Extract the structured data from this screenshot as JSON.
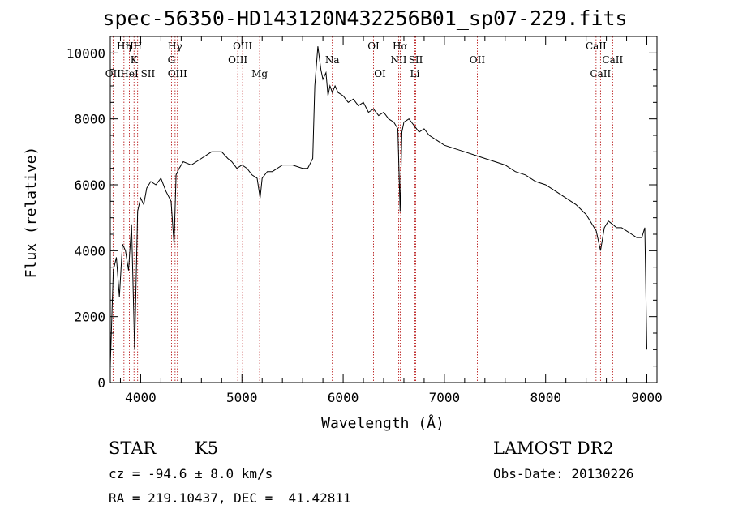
{
  "chart_data": {
    "type": "line",
    "title": "spec-56350-HD143120N432256B01_sp07-229.fits",
    "xlabel": "Wavelength (Å)",
    "ylabel": "Flux (relative)",
    "xlim": [
      3700,
      9100
    ],
    "ylim": [
      0,
      10500
    ],
    "x_ticks": [
      4000,
      5000,
      6000,
      7000,
      8000,
      9000
    ],
    "y_ticks": [
      0,
      2000,
      4000,
      6000,
      8000,
      10000
    ],
    "series": [
      {
        "x": [
          3700,
          3730,
          3760,
          3790,
          3820,
          3850,
          3880,
          3910,
          3940,
          3970,
          4000,
          4030,
          4060,
          4100,
          4150,
          4200,
          4250,
          4300,
          4330,
          4350,
          4380,
          4420,
          4500,
          4600,
          4700,
          4800,
          4860,
          4900,
          4950,
          5000,
          5050,
          5100,
          5150,
          5180,
          5200,
          5250,
          5300,
          5400,
          5500,
          5600,
          5650,
          5700,
          5720,
          5750,
          5780,
          5800,
          5830,
          5850,
          5870,
          5893,
          5920,
          5950,
          6000,
          6050,
          6100,
          6150,
          6200,
          6250,
          6300,
          6350,
          6400,
          6450,
          6500,
          6540,
          6563,
          6580,
          6600,
          6650,
          6700,
          6750,
          6800,
          6850,
          6900,
          7000,
          7100,
          7200,
          7300,
          7400,
          7500,
          7600,
          7700,
          7800,
          7900,
          8000,
          8100,
          8200,
          8300,
          8400,
          8500,
          8542,
          8580,
          8620,
          8662,
          8700,
          8750,
          8800,
          8850,
          8900,
          8950,
          8980,
          9000
        ],
        "values": [
          500,
          3400,
          3800,
          2600,
          4200,
          4000,
          3400,
          4800,
          1000,
          5200,
          5600,
          5400,
          5900,
          6100,
          6000,
          6200,
          5800,
          5500,
          4200,
          6300,
          6500,
          6700,
          6600,
          6800,
          7000,
          7000,
          6800,
          6700,
          6500,
          6600,
          6500,
          6300,
          6200,
          5600,
          6200,
          6400,
          6400,
          6600,
          6600,
          6500,
          6500,
          6800,
          9000,
          10200,
          9500,
          9200,
          9400,
          8700,
          9000,
          8800,
          9000,
          8800,
          8700,
          8500,
          8600,
          8400,
          8500,
          8200,
          8300,
          8100,
          8200,
          8000,
          7900,
          7700,
          5200,
          7600,
          7900,
          8000,
          7800,
          7600,
          7700,
          7500,
          7400,
          7200,
          7100,
          7000,
          6900,
          6800,
          6700,
          6600,
          6400,
          6300,
          6100,
          6000,
          5800,
          5600,
          5400,
          5100,
          4600,
          4000,
          4700,
          4900,
          4800,
          4700,
          4700,
          4600,
          4500,
          4400,
          4400,
          4700,
          1000
        ]
      }
    ],
    "line_markers": [
      {
        "label": "Hη",
        "x": 3835,
        "row": 1
      },
      {
        "label": "H",
        "x": 3889,
        "row": 1
      },
      {
        "label": "K",
        "x": 3934,
        "row": 2
      },
      {
        "label": "H",
        "x": 3970,
        "row": 1
      },
      {
        "label": "OII",
        "x": 3727,
        "row": 3
      },
      {
        "label": "HeI",
        "x": 3889,
        "row": 3
      },
      {
        "label": "SII",
        "x": 4072,
        "row": 3
      },
      {
        "label": "Hγ",
        "x": 4340,
        "row": 1
      },
      {
        "label": "G",
        "x": 4304,
        "row": 2
      },
      {
        "label": "OIII",
        "x": 4363,
        "row": 3
      },
      {
        "label": "OIII",
        "x": 5007,
        "row": 1
      },
      {
        "label": "OIII",
        "x": 4959,
        "row": 2
      },
      {
        "label": "Mg",
        "x": 5175,
        "row": 3
      },
      {
        "label": "Na",
        "x": 5893,
        "row": 2
      },
      {
        "label": "OI",
        "x": 6300,
        "row": 1
      },
      {
        "label": "OI",
        "x": 6364,
        "row": 3
      },
      {
        "label": "Hα",
        "x": 6563,
        "row": 1
      },
      {
        "label": "NII",
        "x": 6548,
        "row": 2
      },
      {
        "label": "SII",
        "x": 6717,
        "row": 2
      },
      {
        "label": "Li",
        "x": 6708,
        "row": 3
      },
      {
        "label": "OII",
        "x": 7325,
        "row": 2
      },
      {
        "label": "CaII",
        "x": 8498,
        "row": 1
      },
      {
        "label": "CaII",
        "x": 8662,
        "row": 2
      },
      {
        "label": "CaII",
        "x": 8542,
        "row": 3
      }
    ],
    "marker_lines": [
      3727,
      3835,
      3889,
      3934,
      3970,
      4072,
      4304,
      4340,
      4363,
      4959,
      5007,
      5175,
      5893,
      6300,
      6364,
      6548,
      6563,
      6708,
      6717,
      7325,
      8498,
      8542,
      8662
    ]
  },
  "info": {
    "object_class": "STAR",
    "subclass": "K5",
    "release": "LAMOST DR2",
    "redshift": "cz = -94.6 ± 8.0 km/s",
    "obs_date": "Obs-Date: 20130226",
    "coords": "RA = 219.10437, DEC =  41.42811"
  }
}
